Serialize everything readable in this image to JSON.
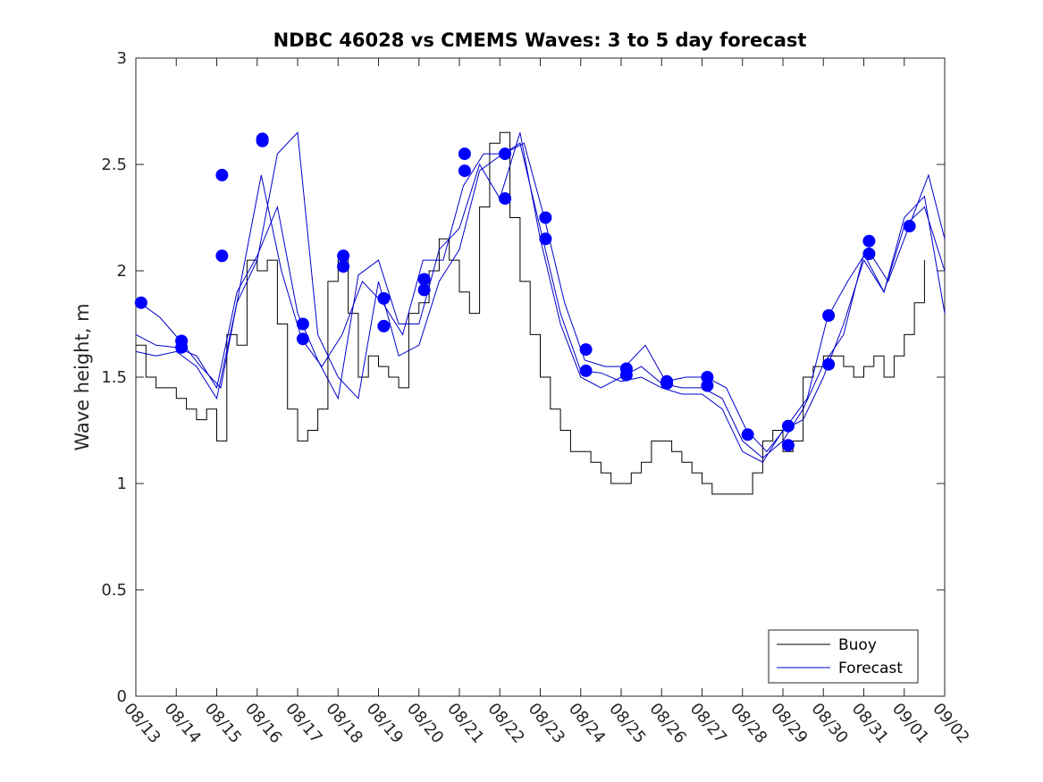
{
  "chart_data": {
    "type": "line",
    "title": "NDBC 46028 vs CMEMS Waves: 3 to 5 day forecast",
    "xlabel": "",
    "ylabel": "Wave height, m",
    "ylim": [
      0,
      3
    ],
    "yticks": [
      0,
      0.5,
      1,
      1.5,
      2,
      2.5,
      3
    ],
    "ytick_labels": [
      "0",
      "0.5",
      "1",
      "1.5",
      "2",
      "2.5",
      "3"
    ],
    "xlim": [
      0,
      20
    ],
    "xtick_labels": [
      "08/13",
      "08/14",
      "08/15",
      "08/16",
      "08/17",
      "08/18",
      "08/19",
      "08/20",
      "08/21",
      "08/22",
      "08/23",
      "08/24",
      "08/25",
      "08/26",
      "08/27",
      "08/28",
      "08/29",
      "08/30",
      "08/31",
      "09/01",
      "09/02"
    ],
    "grid": false,
    "legend": {
      "position": "bottom-right",
      "entries": [
        "Buoy",
        "Forecast"
      ]
    },
    "series": [
      {
        "name": "Buoy",
        "color": "#000000",
        "x": [
          0,
          0.25,
          0.5,
          0.75,
          1,
          1.25,
          1.5,
          1.75,
          2,
          2.25,
          2.5,
          2.75,
          3,
          3.25,
          3.5,
          3.75,
          4,
          4.25,
          4.5,
          4.75,
          5,
          5.25,
          5.5,
          5.75,
          6,
          6.25,
          6.5,
          6.75,
          7,
          7.25,
          7.5,
          7.75,
          8,
          8.25,
          8.5,
          8.75,
          9,
          9.25,
          9.5,
          9.75,
          10,
          10.25,
          10.5,
          10.75,
          11,
          11.25,
          11.5,
          11.75,
          12,
          12.25,
          12.5,
          12.75,
          13,
          13.25,
          13.5,
          13.75,
          14,
          14.25,
          14.5,
          14.75,
          15,
          15.25,
          15.5,
          15.75,
          16,
          16.25,
          16.5,
          16.75,
          17,
          17.25,
          17.5,
          17.75,
          18,
          18.25,
          18.5,
          18.75,
          19,
          19.25,
          19.5
        ],
        "values": [
          1.65,
          1.5,
          1.45,
          1.45,
          1.4,
          1.35,
          1.3,
          1.35,
          1.2,
          1.7,
          1.65,
          2.05,
          2.0,
          2.05,
          1.75,
          1.35,
          1.2,
          1.25,
          1.35,
          1.95,
          2.05,
          1.8,
          1.5,
          1.6,
          1.55,
          1.5,
          1.45,
          1.8,
          1.85,
          2.0,
          2.15,
          2.05,
          1.9,
          1.8,
          2.3,
          2.6,
          2.65,
          2.25,
          1.95,
          1.7,
          1.5,
          1.35,
          1.25,
          1.15,
          1.15,
          1.1,
          1.05,
          1.0,
          1.0,
          1.05,
          1.1,
          1.2,
          1.2,
          1.15,
          1.1,
          1.05,
          1.0,
          0.95,
          0.95,
          0.95,
          0.95,
          1.05,
          1.2,
          1.25,
          1.15,
          1.2,
          1.5,
          1.55,
          1.6,
          1.6,
          1.55,
          1.5,
          1.55,
          1.6,
          1.5,
          1.6,
          1.7,
          1.85,
          2.05
        ]
      },
      {
        "name": "Forecast",
        "color": "#0000cc",
        "marker_color": "#0000ff",
        "runs": [
          {
            "x": [
              0.1,
              0.6,
              1.1,
              1.6,
              2.1,
              2.6,
              3.1,
              3.6,
              4.1,
              4.6,
              5.1,
              5.6,
              6.1,
              6.6,
              7.1,
              7.6,
              8.1,
              8.6,
              9.1,
              9.6,
              10.1,
              10.6,
              11.1,
              11.6,
              12.1,
              12.6,
              13.1,
              13.6,
              14.1,
              14.6,
              15.1,
              15.6,
              16.1,
              16.6,
              17.1,
              17.6,
              18.1,
              18.6,
              19.1,
              19.6,
              20
            ],
            "values": [
              1.85,
              1.78,
              1.67,
              1.55,
              1.45,
              1.95,
              2.45,
              2.0,
              1.68,
              1.55,
              1.7,
              1.95,
              1.85,
              1.7,
              2.05,
              2.05,
              2.4,
              2.55,
              2.55,
              2.6,
              2.25,
              1.85,
              1.58,
              1.55,
              1.55,
              1.65,
              1.48,
              1.5,
              1.5,
              1.45,
              1.25,
              1.15,
              1.27,
              1.4,
              1.78,
              1.95,
              2.1,
              1.95,
              2.2,
              2.45,
              2.15
            ]
          },
          {
            "x": [
              0,
              0.5,
              1,
              1.5,
              2,
              2.5,
              3,
              3.5,
              4,
              4.5,
              5,
              5.5,
              6,
              6.5,
              7,
              7.5,
              8,
              8.5,
              9,
              9.5,
              10,
              10.5,
              11,
              11.5,
              12,
              12.5,
              13,
              13.5,
              14,
              14.5,
              15,
              15.5,
              16,
              16.5,
              17,
              17.5,
              18,
              18.5,
              19,
              19.5,
              20
            ],
            "values": [
              1.7,
              1.65,
              1.64,
              1.6,
              1.45,
              1.9,
              2.07,
              2.3,
              1.8,
              1.58,
              1.4,
              1.98,
              2.05,
              1.75,
              1.75,
              2.1,
              2.2,
              2.5,
              2.34,
              2.65,
              2.15,
              1.75,
              1.5,
              1.45,
              1.5,
              1.55,
              1.47,
              1.45,
              1.45,
              1.4,
              1.2,
              1.12,
              1.2,
              1.35,
              1.56,
              1.7,
              2.08,
              1.9,
              2.21,
              2.3,
              2.0
            ]
          },
          {
            "x": [
              0,
              0.5,
              1,
              1.5,
              2,
              2.5,
              3,
              3.5,
              4,
              4.5,
              5,
              5.5,
              6,
              6.5,
              7,
              7.5,
              8,
              8.5,
              9,
              9.5,
              10,
              10.5,
              11,
              11.5,
              12,
              12.5,
              13,
              13.5,
              14,
              14.5,
              15,
              15.5,
              16,
              16.5,
              17,
              17.5,
              18,
              18.5,
              19,
              19.5,
              20
            ],
            "values": [
              1.62,
              1.6,
              1.62,
              1.55,
              1.4,
              1.85,
              2.05,
              2.55,
              2.65,
              1.7,
              1.5,
              1.4,
              1.95,
              1.6,
              1.65,
              1.95,
              2.1,
              2.47,
              2.54,
              2.6,
              2.2,
              1.8,
              1.53,
              1.52,
              1.48,
              1.5,
              1.45,
              1.42,
              1.42,
              1.35,
              1.15,
              1.1,
              1.25,
              1.3,
              1.5,
              1.75,
              2.05,
              1.9,
              2.25,
              2.35,
              1.8
            ]
          }
        ],
        "markers": [
          {
            "x": 0.13,
            "y": 1.85
          },
          {
            "x": 1.13,
            "y": 1.67
          },
          {
            "x": 1.13,
            "y": 1.64
          },
          {
            "x": 2.13,
            "y": 2.45
          },
          {
            "x": 2.13,
            "y": 2.07
          },
          {
            "x": 3.13,
            "y": 2.62
          },
          {
            "x": 3.13,
            "y": 2.61
          },
          {
            "x": 4.13,
            "y": 1.75
          },
          {
            "x": 4.13,
            "y": 1.68
          },
          {
            "x": 5.13,
            "y": 2.07
          },
          {
            "x": 5.13,
            "y": 2.02
          },
          {
            "x": 6.13,
            "y": 1.87
          },
          {
            "x": 6.13,
            "y": 1.74
          },
          {
            "x": 7.13,
            "y": 1.96
          },
          {
            "x": 7.13,
            "y": 1.91
          },
          {
            "x": 8.13,
            "y": 2.55
          },
          {
            "x": 8.13,
            "y": 2.47
          },
          {
            "x": 9.13,
            "y": 2.55
          },
          {
            "x": 9.13,
            "y": 2.34
          },
          {
            "x": 10.13,
            "y": 2.25
          },
          {
            "x": 10.13,
            "y": 2.15
          },
          {
            "x": 11.13,
            "y": 1.63
          },
          {
            "x": 11.13,
            "y": 1.53
          },
          {
            "x": 12.13,
            "y": 1.54
          },
          {
            "x": 12.13,
            "y": 1.51
          },
          {
            "x": 13.13,
            "y": 1.48
          },
          {
            "x": 13.13,
            "y": 1.47
          },
          {
            "x": 14.13,
            "y": 1.5
          },
          {
            "x": 14.13,
            "y": 1.46
          },
          {
            "x": 15.13,
            "y": 1.23
          },
          {
            "x": 16.13,
            "y": 1.27
          },
          {
            "x": 16.13,
            "y": 1.18
          },
          {
            "x": 17.13,
            "y": 1.79
          },
          {
            "x": 17.13,
            "y": 1.56
          },
          {
            "x": 18.13,
            "y": 2.14
          },
          {
            "x": 18.13,
            "y": 2.08
          },
          {
            "x": 19.13,
            "y": 2.21
          }
        ]
      }
    ]
  }
}
